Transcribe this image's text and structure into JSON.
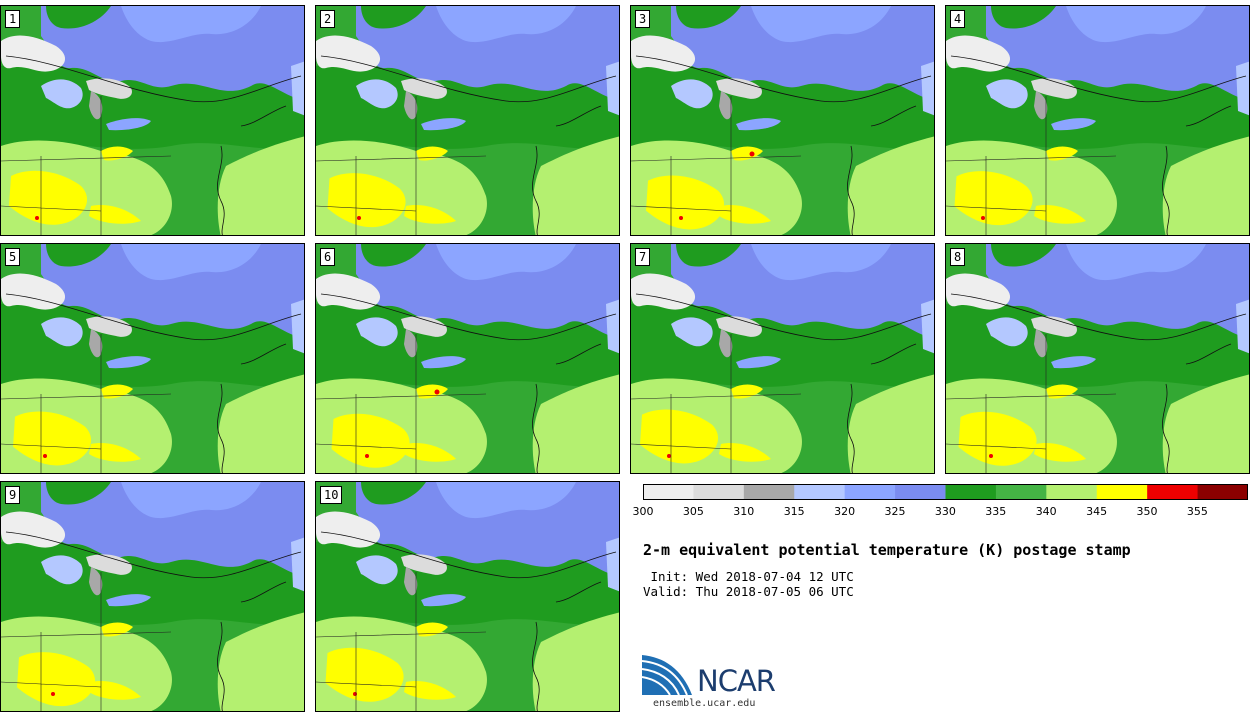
{
  "stamps": [
    {
      "label": "1"
    },
    {
      "label": "2"
    },
    {
      "label": "3"
    },
    {
      "label": "4"
    },
    {
      "label": "5"
    },
    {
      "label": "6"
    },
    {
      "label": "7"
    },
    {
      "label": "8"
    },
    {
      "label": "9"
    },
    {
      "label": "10"
    }
  ],
  "colorbar": {
    "ticks": [
      "300",
      "305",
      "310",
      "315",
      "320",
      "325",
      "330",
      "335",
      "340",
      "345",
      "350",
      "355"
    ],
    "colors": [
      "#eeeeee",
      "#dcdcdc",
      "#a8a8a8",
      "#b4c8ff",
      "#8ca5ff",
      "#7b8cf0",
      "#1f9c1f",
      "#44b444",
      "#b4f070",
      "#ffff00",
      "#ee0000",
      "#8b0000"
    ]
  },
  "title": "2-m equivalent potential temperature (K) postage stamp",
  "init": " Init: Wed 2018-07-04 12 UTC",
  "valid": "Valid: Thu 2018-07-05 06 UTC",
  "logo": {
    "text": "NCAR",
    "site": "ensemble.ucar.edu"
  }
}
